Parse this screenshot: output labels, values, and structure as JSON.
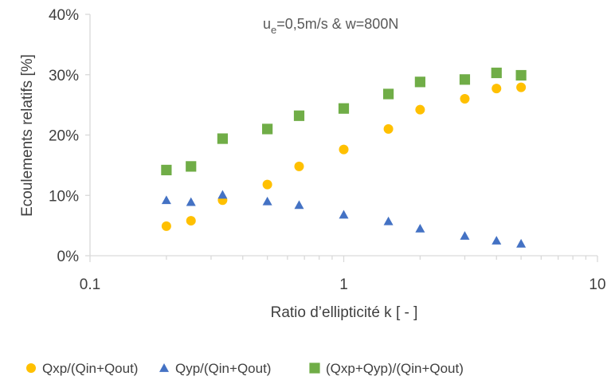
{
  "chart_data": {
    "type": "scatter",
    "title": "",
    "annotation": {
      "prefix": "u",
      "subscript": "e",
      "suffix": "=0,5m/s & w=800N"
    },
    "xlabel": "Ratio d’ellipticité k [ - ]",
    "ylabel": "Ecoulements relatifs [%]",
    "x_scale": "log",
    "xlim": [
      0.1,
      10
    ],
    "ylim": [
      0,
      40
    ],
    "x_ticks": [
      {
        "value": 0.1,
        "label": "0.1"
      },
      {
        "value": 1,
        "label": "1"
      },
      {
        "value": 10,
        "label": "10"
      }
    ],
    "y_ticks": [
      {
        "value": 0,
        "label": "0%"
      },
      {
        "value": 10,
        "label": "10%"
      },
      {
        "value": 20,
        "label": "20%"
      },
      {
        "value": 30,
        "label": "30%"
      },
      {
        "value": 40,
        "label": "40%"
      }
    ],
    "grid": false,
    "legend_position": "bottom",
    "x": [
      0.2,
      0.25,
      0.333,
      0.5,
      0.667,
      1,
      1.5,
      2,
      3,
      4,
      5
    ],
    "series": [
      {
        "name": "Qxp/(Qin+Qout)",
        "marker": "circle",
        "color": "#FFC000",
        "values": [
          4.9,
          5.8,
          9.2,
          11.8,
          14.8,
          17.6,
          21.0,
          24.2,
          26.0,
          27.7,
          27.9
        ]
      },
      {
        "name": "Qyp/(Qin+Qout)",
        "marker": "triangle",
        "color": "#4472C4",
        "values": [
          9.2,
          8.9,
          10.1,
          9.0,
          8.4,
          6.8,
          5.7,
          4.5,
          3.3,
          2.5,
          2.0
        ]
      },
      {
        "name": "(Qxp+Qyp)/(Qin+Qout)",
        "marker": "square",
        "color": "#70AD47",
        "values": [
          14.2,
          14.8,
          19.4,
          21.0,
          23.2,
          24.4,
          26.8,
          28.8,
          29.2,
          30.3,
          29.9
        ]
      }
    ],
    "axis_color": "#D9D9D9"
  }
}
